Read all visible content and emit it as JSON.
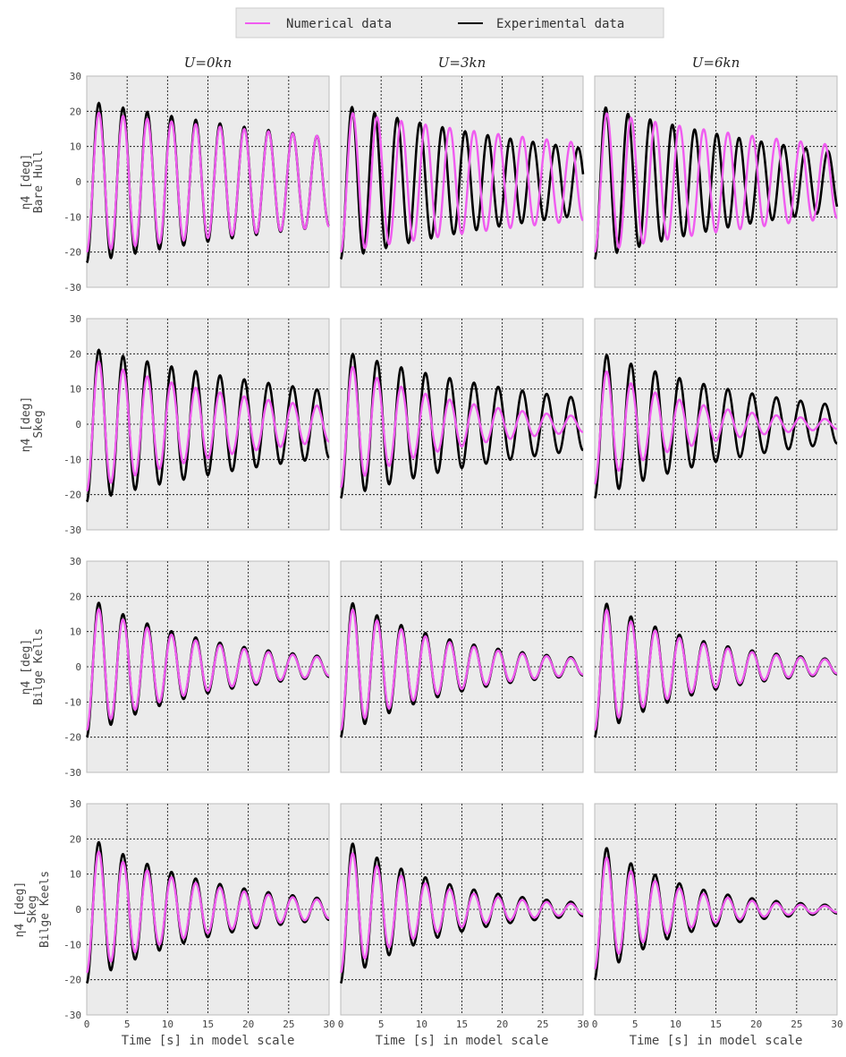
{
  "legend": {
    "numerical": "Numerical data",
    "experimental": "Experimental data",
    "numerical_color": "#f05cf0",
    "experimental_color": "#000000"
  },
  "columns": [
    "U=0kn",
    "U=3kn",
    "U=6kn"
  ],
  "rows": [
    {
      "ylabel_line1": "η4 [deg]",
      "ylabel_lines": [
        "Bare Hull"
      ]
    },
    {
      "ylabel_line1": "η4 [deg]",
      "ylabel_lines": [
        "Skeg"
      ]
    },
    {
      "ylabel_line1": "η4 [deg]",
      "ylabel_lines": [
        "Bilge Kells"
      ]
    },
    {
      "ylabel_line1": "η4 [deg]",
      "ylabel_lines": [
        "Skeg",
        "Bilge Keels"
      ]
    }
  ],
  "xlabel": "Time [s] in model scale",
  "colors": {
    "panel_bg": "#ebebeb",
    "grid": "#000000",
    "border": "#bbbbbb"
  },
  "chart_data": {
    "type": "line",
    "xlim": [
      0,
      30
    ],
    "ylim": [
      -30,
      30
    ],
    "xticks": [
      0,
      5,
      10,
      15,
      20,
      25,
      30
    ],
    "yticks": [
      -30,
      -20,
      -10,
      0,
      10,
      20,
      30
    ],
    "grid": true,
    "legend_position": "top-center",
    "series_names": [
      "Numerical data",
      "Experimental data"
    ],
    "panels": [
      {
        "row": 0,
        "col": 0,
        "numerical": {
          "amp0": 20,
          "decay": 0.015,
          "period": 3.0,
          "phase_shift": 0.0
        },
        "experimental": {
          "amp0": 23,
          "decay": 0.02,
          "period": 3.0,
          "phase_shift": 0.0
        }
      },
      {
        "row": 0,
        "col": 1,
        "numerical": {
          "amp0": 20,
          "decay": 0.02,
          "period": 3.0,
          "phase_shift": 0.0
        },
        "experimental": {
          "amp0": 22,
          "decay": 0.028,
          "period": 2.8,
          "phase_shift": 0.0
        }
      },
      {
        "row": 0,
        "col": 2,
        "numerical": {
          "amp0": 20,
          "decay": 0.022,
          "period": 3.0,
          "phase_shift": 0.0
        },
        "experimental": {
          "amp0": 22,
          "decay": 0.032,
          "period": 2.75,
          "phase_shift": 0.0
        }
      },
      {
        "row": 1,
        "col": 0,
        "numerical": {
          "amp0": 19,
          "decay": 0.045,
          "period": 3.0,
          "phase_shift": 0.0
        },
        "experimental": {
          "amp0": 22,
          "decay": 0.028,
          "period": 3.0,
          "phase_shift": 0.0
        }
      },
      {
        "row": 1,
        "col": 1,
        "numerical": {
          "amp0": 18,
          "decay": 0.07,
          "period": 3.0,
          "phase_shift": 0.0
        },
        "experimental": {
          "amp0": 21,
          "decay": 0.035,
          "period": 3.0,
          "phase_shift": 0.0
        }
      },
      {
        "row": 1,
        "col": 2,
        "numerical": {
          "amp0": 17,
          "decay": 0.085,
          "period": 3.0,
          "phase_shift": 0.0
        },
        "experimental": {
          "amp0": 21,
          "decay": 0.045,
          "period": 3.0,
          "phase_shift": 0.0
        }
      },
      {
        "row": 2,
        "col": 0,
        "numerical": {
          "amp0": 18,
          "decay": 0.065,
          "period": 3.0,
          "phase_shift": 0.0
        },
        "experimental": {
          "amp0": 20,
          "decay": 0.065,
          "period": 3.0,
          "phase_shift": 0.0
        }
      },
      {
        "row": 2,
        "col": 1,
        "numerical": {
          "amp0": 18,
          "decay": 0.07,
          "period": 3.0,
          "phase_shift": 0.0
        },
        "experimental": {
          "amp0": 20,
          "decay": 0.07,
          "period": 3.0,
          "phase_shift": 0.0
        }
      },
      {
        "row": 2,
        "col": 2,
        "numerical": {
          "amp0": 18,
          "decay": 0.075,
          "period": 3.0,
          "phase_shift": 0.0
        },
        "experimental": {
          "amp0": 20,
          "decay": 0.075,
          "period": 3.0,
          "phase_shift": 0.0
        }
      },
      {
        "row": 3,
        "col": 0,
        "numerical": {
          "amp0": 18,
          "decay": 0.065,
          "period": 3.0,
          "phase_shift": 0.0
        },
        "experimental": {
          "amp0": 21,
          "decay": 0.065,
          "period": 3.0,
          "phase_shift": 0.0
        }
      },
      {
        "row": 3,
        "col": 1,
        "numerical": {
          "amp0": 18,
          "decay": 0.085,
          "period": 3.0,
          "phase_shift": 0.0
        },
        "experimental": {
          "amp0": 21,
          "decay": 0.08,
          "period": 3.0,
          "phase_shift": 0.0
        }
      },
      {
        "row": 3,
        "col": 2,
        "numerical": {
          "amp0": 17,
          "decay": 0.1,
          "period": 3.0,
          "phase_shift": 0.0
        },
        "experimental": {
          "amp0": 20,
          "decay": 0.095,
          "period": 3.0,
          "phase_shift": 0.0
        }
      }
    ]
  }
}
